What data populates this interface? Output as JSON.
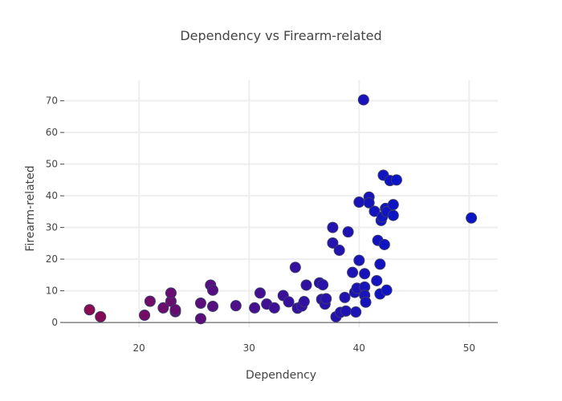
{
  "chart_data": {
    "type": "scatter",
    "title": "Dependency vs Firearm-related",
    "xlabel": "Dependency",
    "ylabel": "Firearm-related",
    "xlim": [
      13.2,
      52.6
    ],
    "ylim": [
      -1.5,
      76.5
    ],
    "xticks": [
      20,
      30,
      40,
      50
    ],
    "yticks": [
      0,
      10,
      20,
      30,
      40,
      50,
      60,
      70
    ],
    "color_scale": {
      "low": "#8b0a50",
      "high": "#0a14c8"
    },
    "grid": true,
    "points": [
      [
        15.5,
        4.0
      ],
      [
        16.5,
        1.8
      ],
      [
        20.5,
        2.3
      ],
      [
        21.0,
        6.7
      ],
      [
        22.2,
        4.6
      ],
      [
        22.9,
        6.7
      ],
      [
        22.9,
        9.3
      ],
      [
        23.3,
        3.4
      ],
      [
        23.3,
        4.0
      ],
      [
        25.6,
        1.2
      ],
      [
        25.6,
        6.1
      ],
      [
        26.5,
        11.8
      ],
      [
        26.7,
        10.2
      ],
      [
        26.7,
        5.1
      ],
      [
        28.8,
        5.3
      ],
      [
        30.5,
        4.6
      ],
      [
        31.0,
        9.3
      ],
      [
        31.6,
        5.8
      ],
      [
        32.3,
        4.6
      ],
      [
        33.1,
        8.5
      ],
      [
        33.6,
        6.5
      ],
      [
        34.2,
        17.4
      ],
      [
        34.4,
        4.5
      ],
      [
        34.8,
        5.2
      ],
      [
        35.0,
        6.6
      ],
      [
        35.2,
        11.8
      ],
      [
        36.4,
        12.5
      ],
      [
        36.6,
        7.3
      ],
      [
        36.7,
        11.9
      ],
      [
        36.9,
        5.8
      ],
      [
        37.0,
        7.5
      ],
      [
        37.6,
        30.0
      ],
      [
        37.6,
        25.1
      ],
      [
        37.9,
        1.8
      ],
      [
        38.2,
        22.8
      ],
      [
        38.3,
        3.2
      ],
      [
        38.7,
        7.9
      ],
      [
        38.8,
        3.6
      ],
      [
        39.0,
        28.6
      ],
      [
        39.4,
        15.8
      ],
      [
        39.6,
        9.5
      ],
      [
        39.7,
        3.3
      ],
      [
        39.8,
        10.8
      ],
      [
        40.0,
        38.0
      ],
      [
        40.0,
        19.6
      ],
      [
        40.4,
        70.3
      ],
      [
        40.5,
        15.4
      ],
      [
        40.5,
        11.2
      ],
      [
        40.5,
        8.6
      ],
      [
        40.6,
        6.4
      ],
      [
        40.9,
        39.6
      ],
      [
        40.9,
        37.8
      ],
      [
        41.4,
        35.1
      ],
      [
        41.6,
        13.2
      ],
      [
        41.7,
        25.9
      ],
      [
        41.9,
        18.4
      ],
      [
        41.9,
        9.0
      ],
      [
        42.0,
        32.2
      ],
      [
        42.1,
        33.3
      ],
      [
        42.2,
        46.5
      ],
      [
        42.3,
        24.6
      ],
      [
        42.4,
        36.0
      ],
      [
        42.5,
        35.0
      ],
      [
        42.5,
        10.2
      ],
      [
        42.8,
        44.8
      ],
      [
        43.1,
        33.8
      ],
      [
        43.1,
        37.2
      ],
      [
        43.4,
        45.0
      ],
      [
        50.2,
        33.0
      ]
    ]
  }
}
